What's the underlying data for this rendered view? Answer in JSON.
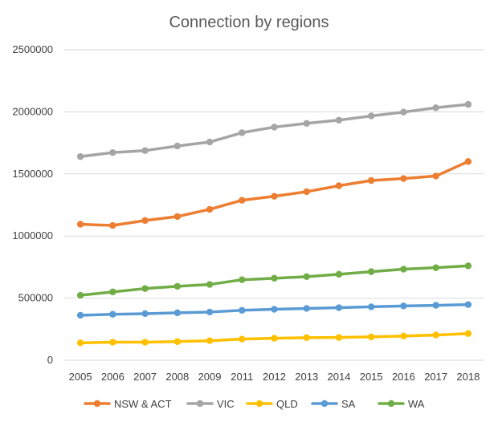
{
  "chart_data": {
    "type": "line",
    "title": "Connection by regions",
    "xlabel": "",
    "ylabel": "",
    "x": [
      "2005",
      "2006",
      "2007",
      "2008",
      "2009",
      "2011",
      "2012",
      "2013",
      "2014",
      "2015",
      "2016",
      "2017",
      "2018"
    ],
    "ylim": [
      0,
      2500000
    ],
    "yticks": [
      0,
      500000,
      1000000,
      1500000,
      2000000,
      2500000
    ],
    "ytick_labels": [
      "0",
      "500000",
      "1000000",
      "1500000",
      "2000000",
      "2500000"
    ],
    "grid": true,
    "legend_position": "bottom",
    "series": [
      {
        "name": "NSW & ACT",
        "color": "#ED7D31",
        "values": [
          1095000,
          1085000,
          1125000,
          1157000,
          1215000,
          1288000,
          1320000,
          1357000,
          1405000,
          1447000,
          1463000,
          1483000,
          1600000
        ]
      },
      {
        "name": "VIC",
        "color": "#A5A5A5",
        "values": [
          1640000,
          1672000,
          1688000,
          1725000,
          1757000,
          1832000,
          1877000,
          1907000,
          1933000,
          1967000,
          1998000,
          2033000,
          2060000
        ]
      },
      {
        "name": "QLD",
        "color": "#FFC000",
        "values": [
          140000,
          145000,
          145000,
          150000,
          157000,
          170000,
          177000,
          182000,
          183000,
          188000,
          195000,
          203000,
          215000
        ]
      },
      {
        "name": "SA",
        "color": "#5B9BD5",
        "values": [
          362000,
          370000,
          375000,
          382000,
          388000,
          402000,
          410000,
          417000,
          423000,
          430000,
          437000,
          442000,
          448000
        ]
      },
      {
        "name": "WA",
        "color": "#70AD47",
        "values": [
          523000,
          550000,
          577000,
          595000,
          610000,
          648000,
          660000,
          673000,
          692000,
          713000,
          733000,
          745000,
          760000
        ]
      }
    ]
  }
}
